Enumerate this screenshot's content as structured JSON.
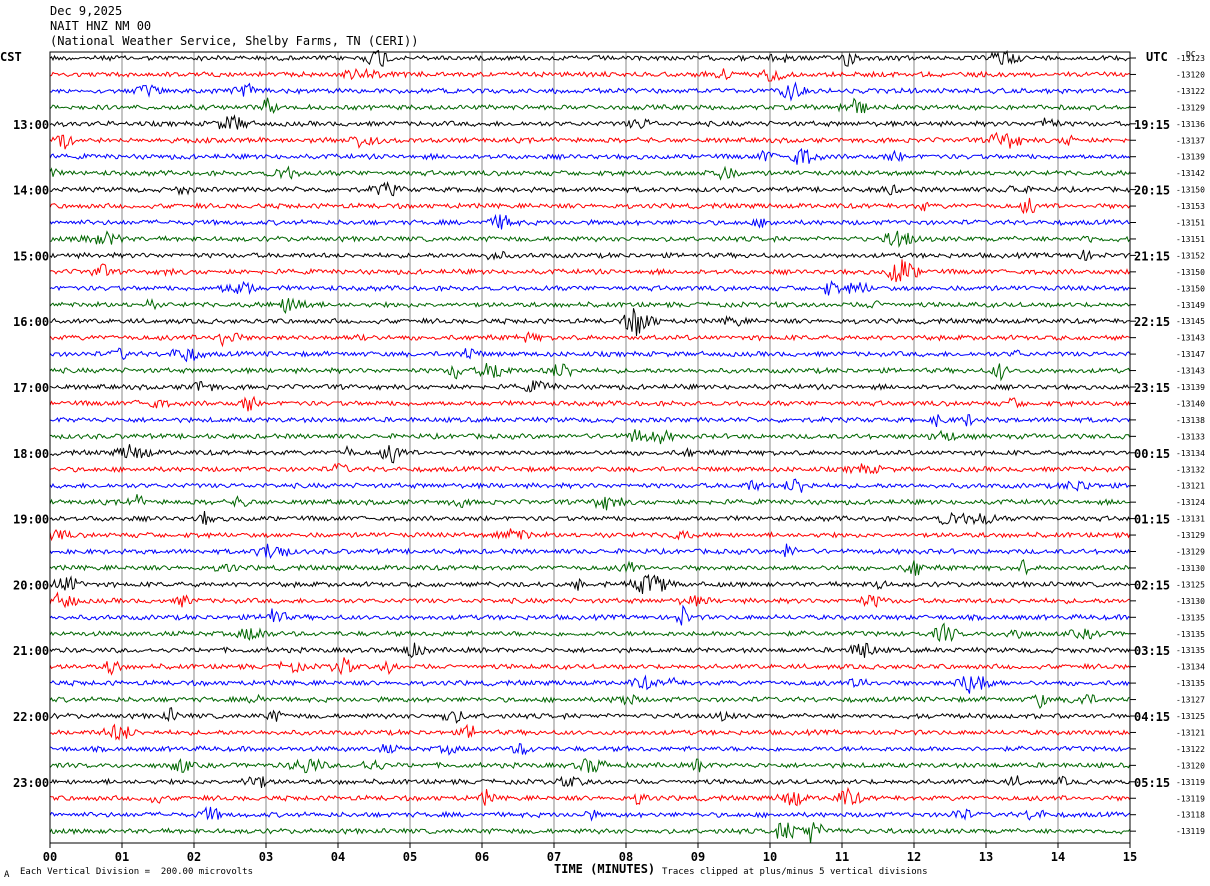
{
  "header": {
    "date": "Dec 9,2025",
    "station": "NAIT HNZ NM 00",
    "source": "(National Weather Service, Shelby Farms, TN (CERI))"
  },
  "left_tz": "CST",
  "right_tz": "UTC",
  "dc_label": "DC",
  "footer": {
    "scale": "Each Vertical Division =  200.00 microvolts",
    "clip": "Traces clipped at plus/minus 5 vertical divisions",
    "corner_mark": "A"
  },
  "chart_data": {
    "type": "line",
    "title": "",
    "xlabel": "TIME (MINUTES)",
    "ylabel": "",
    "xlim": [
      0,
      15
    ],
    "x_ticks": [
      "00",
      "01",
      "02",
      "03",
      "04",
      "05",
      "06",
      "07",
      "08",
      "09",
      "10",
      "11",
      "12",
      "13",
      "14",
      "15"
    ],
    "traces_per_hour": 4,
    "trace_colors": [
      "#000000",
      "#ff0000",
      "#0000ff",
      "#006600"
    ],
    "left_hour_labels": [
      "13:00",
      "14:00",
      "15:00",
      "16:00",
      "17:00",
      "18:00",
      "19:00",
      "20:00",
      "21:00",
      "22:00",
      "23:00"
    ],
    "right_hour_labels": [
      "19:15",
      "20:15",
      "21:15",
      "22:15",
      "23:15",
      "00:15",
      "01:15",
      "02:15",
      "03:15",
      "04:15",
      "05:15"
    ],
    "dc_offsets": [
      -13123,
      -13120,
      -13122,
      -13129,
      -13136,
      -13137,
      -13139,
      -13142,
      -13150,
      -13153,
      -13151,
      -13151,
      -13152,
      -13150,
      -13150,
      -13149,
      -13145,
      -13143,
      -13147,
      -13143,
      -13139,
      -13140,
      -13138,
      -13133,
      -13134,
      -13132,
      -13121,
      -13124,
      -13131,
      -13129,
      -13129,
      -13130,
      -13125,
      -13130,
      -13135,
      -13135,
      -13135,
      -13134,
      -13135,
      -13127,
      -13125,
      -13121,
      -13122,
      -13120,
      -13119,
      -13119,
      -13118,
      -13119
    ]
  }
}
